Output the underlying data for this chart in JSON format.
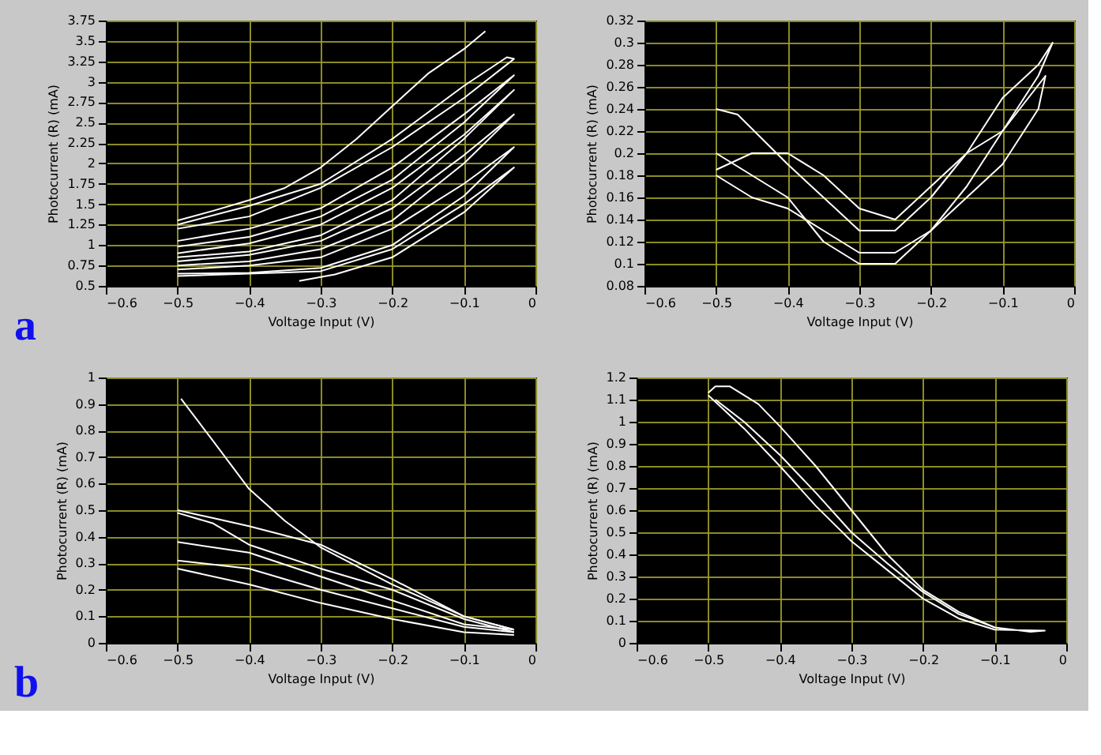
{
  "chart_data": [
    {
      "type": "line",
      "xlabel": "Voltage Input (V)",
      "ylabel": "Photocurrent (R) (mA)",
      "annotations": [
        "a"
      ],
      "xlim": [
        -0.6,
        0
      ],
      "ylim": [
        0.5,
        3.75
      ],
      "xticks": [
        -0.6,
        -0.5,
        -0.4,
        -0.3,
        -0.2,
        -0.1,
        0
      ],
      "yticks": [
        0.5,
        0.75,
        1,
        1.25,
        1.5,
        1.75,
        2,
        2.25,
        2.5,
        2.75,
        3,
        3.25,
        3.5,
        3.75
      ],
      "grid": true,
      "legend": false,
      "marker": "none",
      "line_style": "solid",
      "series": [
        {
          "color": "#ffffff",
          "x": [
            -0.5,
            -0.45,
            -0.4,
            -0.35,
            -0.3,
            -0.25,
            -0.2,
            -0.15,
            -0.1,
            -0.07
          ],
          "values": [
            1.3,
            1.42,
            1.55,
            1.7,
            1.95,
            2.3,
            2.7,
            3.1,
            3.4,
            3.62
          ]
        },
        {
          "color": "#ffffff",
          "x": [
            -0.5,
            -0.4,
            -0.3,
            -0.2,
            -0.1,
            -0.04,
            -0.03,
            -0.1,
            -0.2,
            -0.3,
            -0.4,
            -0.5
          ],
          "values": [
            1.25,
            1.48,
            1.75,
            2.3,
            2.95,
            3.3,
            3.28,
            2.8,
            2.2,
            1.7,
            1.35,
            1.2
          ]
        },
        {
          "color": "#ffffff",
          "x": [
            -0.5,
            -0.4,
            -0.3,
            -0.2,
            -0.1,
            -0.03,
            -0.1,
            -0.2,
            -0.3,
            -0.4,
            -0.5
          ],
          "values": [
            1.05,
            1.2,
            1.45,
            1.95,
            2.6,
            3.08,
            2.5,
            1.8,
            1.35,
            1.1,
            0.98
          ]
        },
        {
          "color": "#ffffff",
          "x": [
            -0.5,
            -0.4,
            -0.3,
            -0.2,
            -0.1,
            -0.03,
            -0.1,
            -0.2,
            -0.3,
            -0.4,
            -0.5
          ],
          "values": [
            0.9,
            1.02,
            1.25,
            1.7,
            2.35,
            2.9,
            2.3,
            1.55,
            1.12,
            0.92,
            0.85
          ]
        },
        {
          "color": "#ffffff",
          "x": [
            -0.5,
            -0.4,
            -0.3,
            -0.2,
            -0.1,
            -0.03,
            -0.1,
            -0.2,
            -0.3,
            -0.4,
            -0.5
          ],
          "values": [
            0.8,
            0.88,
            1.05,
            1.45,
            2.1,
            2.6,
            2.0,
            1.3,
            0.95,
            0.8,
            0.75
          ]
        },
        {
          "color": "#ffffff",
          "x": [
            -0.5,
            -0.4,
            -0.3,
            -0.2,
            -0.1,
            -0.03,
            -0.1,
            -0.2,
            -0.3,
            -0.4,
            -0.5
          ],
          "values": [
            0.7,
            0.75,
            0.85,
            1.2,
            1.75,
            2.2,
            1.6,
            1.0,
            0.72,
            0.66,
            0.65
          ]
        },
        {
          "color": "#ffffff",
          "x": [
            -0.5,
            -0.4,
            -0.3,
            -0.2,
            -0.1,
            -0.03,
            -0.1,
            -0.2,
            -0.28,
            -0.33
          ],
          "values": [
            0.62,
            0.65,
            0.68,
            0.95,
            1.5,
            1.95,
            1.4,
            0.85,
            0.64,
            0.56
          ]
        }
      ]
    },
    {
      "type": "line",
      "xlabel": "Voltage Input (V)",
      "ylabel": "Photocurrent (R) (mA)",
      "xlim": [
        -0.6,
        0
      ],
      "ylim": [
        0.08,
        0.32
      ],
      "xticks": [
        -0.6,
        -0.5,
        -0.4,
        -0.3,
        -0.2,
        -0.1,
        0
      ],
      "yticks": [
        0.08,
        0.1,
        0.12,
        0.14,
        0.16,
        0.18,
        0.2,
        0.22,
        0.24,
        0.26,
        0.28,
        0.3,
        0.32
      ],
      "grid": true,
      "legend": false,
      "marker": "none",
      "line_style": "solid",
      "series": [
        {
          "color": "#ffffff",
          "x": [
            -0.5,
            -0.47,
            -0.4,
            -0.35,
            -0.3,
            -0.25,
            -0.2,
            -0.15,
            -0.1,
            -0.05,
            -0.03,
            -0.05,
            -0.1,
            -0.15,
            -0.2,
            -0.25,
            -0.3,
            -0.35,
            -0.4,
            -0.45,
            -0.5
          ],
          "values": [
            0.24,
            0.235,
            0.19,
            0.16,
            0.13,
            0.13,
            0.16,
            0.2,
            0.25,
            0.28,
            0.3,
            0.27,
            0.22,
            0.17,
            0.13,
            0.1,
            0.1,
            0.12,
            0.16,
            0.18,
            0.2
          ]
        },
        {
          "color": "#ffffff",
          "x": [
            -0.5,
            -0.45,
            -0.4,
            -0.35,
            -0.3,
            -0.25,
            -0.2,
            -0.15,
            -0.1,
            -0.04,
            -0.05,
            -0.1,
            -0.15,
            -0.2,
            -0.25,
            -0.3,
            -0.35,
            -0.4,
            -0.45,
            -0.5
          ],
          "values": [
            0.185,
            0.2,
            0.2,
            0.18,
            0.15,
            0.14,
            0.17,
            0.2,
            0.22,
            0.27,
            0.24,
            0.19,
            0.16,
            0.13,
            0.11,
            0.11,
            0.13,
            0.15,
            0.16,
            0.18
          ]
        }
      ]
    },
    {
      "type": "line",
      "xlabel": "Voltage Input (V)",
      "ylabel": "Photocurrent (R) (mA)",
      "annotations": [
        "b"
      ],
      "xlim": [
        -0.6,
        0
      ],
      "ylim": [
        0,
        1
      ],
      "xticks": [
        -0.6,
        -0.5,
        -0.4,
        -0.3,
        -0.2,
        -0.1,
        0
      ],
      "yticks": [
        0,
        0.1,
        0.2,
        0.3,
        0.4,
        0.5,
        0.6,
        0.7,
        0.8,
        0.9,
        1
      ],
      "grid": true,
      "legend": false,
      "marker": "none",
      "line_style": "solid",
      "series": [
        {
          "color": "#ffffff",
          "x": [
            -0.495,
            -0.45,
            -0.4,
            -0.35,
            -0.3,
            -0.2,
            -0.1,
            -0.03
          ],
          "values": [
            0.92,
            0.76,
            0.58,
            0.46,
            0.36,
            0.22,
            0.1,
            0.05
          ]
        },
        {
          "color": "#ffffff",
          "x": [
            -0.5,
            -0.45,
            -0.4,
            -0.3,
            -0.2,
            -0.1,
            -0.03
          ],
          "values": [
            0.5,
            0.47,
            0.44,
            0.37,
            0.24,
            0.1,
            0.05
          ]
        },
        {
          "color": "#ffffff",
          "x": [
            -0.5,
            -0.45,
            -0.4,
            -0.3,
            -0.2,
            -0.1,
            -0.03
          ],
          "values": [
            0.49,
            0.45,
            0.37,
            0.28,
            0.2,
            0.09,
            0.04
          ]
        },
        {
          "color": "#ffffff",
          "x": [
            -0.5,
            -0.4,
            -0.3,
            -0.2,
            -0.1,
            -0.03
          ],
          "values": [
            0.38,
            0.34,
            0.25,
            0.16,
            0.07,
            0.05
          ]
        },
        {
          "color": "#ffffff",
          "x": [
            -0.5,
            -0.4,
            -0.3,
            -0.2,
            -0.1,
            -0.03
          ],
          "values": [
            0.31,
            0.28,
            0.2,
            0.13,
            0.06,
            0.04
          ]
        },
        {
          "color": "#ffffff",
          "x": [
            -0.5,
            -0.4,
            -0.3,
            -0.2,
            -0.1,
            -0.03
          ],
          "values": [
            0.28,
            0.22,
            0.15,
            0.09,
            0.04,
            0.03
          ]
        }
      ]
    },
    {
      "type": "line",
      "xlabel": "Voltage Input (V)",
      "ylabel": "Photocurrent (R) (mA)",
      "xlim": [
        -0.6,
        0
      ],
      "ylim": [
        0,
        1.2
      ],
      "xticks": [
        -0.6,
        -0.5,
        -0.4,
        -0.3,
        -0.2,
        -0.1,
        0
      ],
      "yticks": [
        0,
        0.1,
        0.2,
        0.3,
        0.4,
        0.5,
        0.6,
        0.7,
        0.8,
        0.9,
        1,
        1.1,
        1.2
      ],
      "grid": true,
      "legend": false,
      "marker": "none",
      "line_style": "solid",
      "series": [
        {
          "color": "#ffffff",
          "x": [
            -0.5,
            -0.49,
            -0.47,
            -0.43,
            -0.4,
            -0.35,
            -0.3,
            -0.25,
            -0.2,
            -0.15,
            -0.1,
            -0.05,
            -0.03,
            -0.1,
            -0.15,
            -0.2,
            -0.25,
            -0.3,
            -0.35,
            -0.4,
            -0.45,
            -0.5
          ],
          "values": [
            1.13,
            1.16,
            1.16,
            1.08,
            0.98,
            0.8,
            0.6,
            0.4,
            0.24,
            0.14,
            0.07,
            0.05,
            0.055,
            0.06,
            0.11,
            0.2,
            0.33,
            0.46,
            0.62,
            0.8,
            0.97,
            1.12
          ]
        },
        {
          "color": "#ffffff",
          "x": [
            -0.49,
            -0.45,
            -0.4,
            -0.35,
            -0.3,
            -0.25,
            -0.2,
            -0.15,
            -0.1
          ],
          "values": [
            1.1,
            1.0,
            0.85,
            0.68,
            0.5,
            0.36,
            0.23,
            0.13,
            0.07
          ]
        }
      ]
    }
  ]
}
